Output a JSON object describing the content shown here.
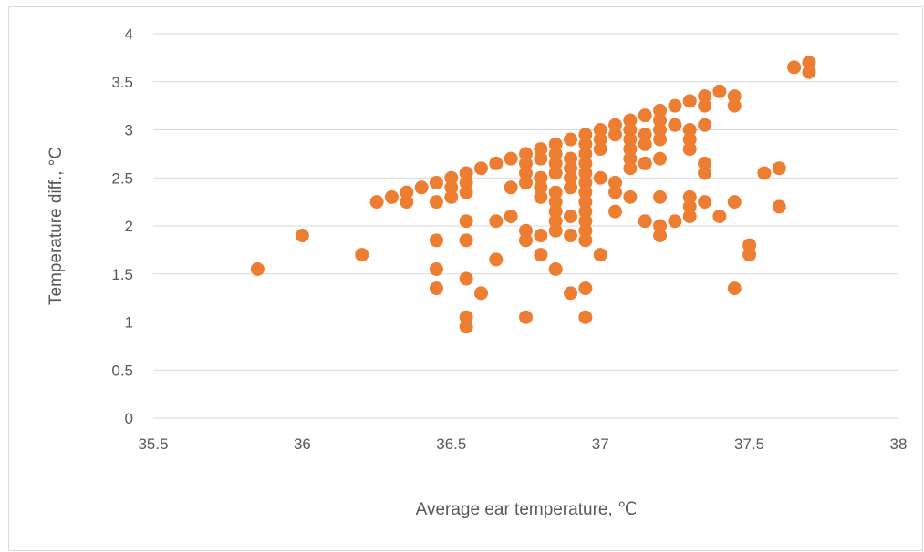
{
  "chart_data": {
    "type": "scatter",
    "title": "",
    "xlabel": "Average ear temperature, ℃",
    "ylabel": "Temperature diff., °C",
    "xlim": [
      35.5,
      38
    ],
    "ylim": [
      0,
      4
    ],
    "x_ticks": [
      "35.5",
      "36",
      "36.5",
      "37",
      "37.5",
      "38"
    ],
    "y_ticks": [
      "0",
      "0.5",
      "1",
      "1.5",
      "2",
      "2.5",
      "3",
      "3.5",
      "4"
    ],
    "grid": "horizontal",
    "legend": "none",
    "marker_color": "#ED7D31",
    "gridline_color": "#d9d9d9",
    "series": [
      {
        "points": [
          [
            35.85,
            1.55
          ],
          [
            36.0,
            1.9
          ],
          [
            36.2,
            1.7
          ],
          [
            36.25,
            2.25
          ],
          [
            36.3,
            2.3
          ],
          [
            36.35,
            2.35
          ],
          [
            36.35,
            2.25
          ],
          [
            36.4,
            2.4
          ],
          [
            36.45,
            2.45
          ],
          [
            36.45,
            2.25
          ],
          [
            36.45,
            1.85
          ],
          [
            36.45,
            1.55
          ],
          [
            36.45,
            1.35
          ],
          [
            36.5,
            2.5
          ],
          [
            36.5,
            2.4
          ],
          [
            36.5,
            2.3
          ],
          [
            36.55,
            2.55
          ],
          [
            36.55,
            2.45
          ],
          [
            36.55,
            2.35
          ],
          [
            36.55,
            2.05
          ],
          [
            36.55,
            1.85
          ],
          [
            36.55,
            1.45
          ],
          [
            36.55,
            1.05
          ],
          [
            36.55,
            0.95
          ],
          [
            36.6,
            2.6
          ],
          [
            36.6,
            1.3
          ],
          [
            36.65,
            2.65
          ],
          [
            36.65,
            2.05
          ],
          [
            36.65,
            1.65
          ],
          [
            36.7,
            2.7
          ],
          [
            36.7,
            2.4
          ],
          [
            36.7,
            2.1
          ],
          [
            36.75,
            2.75
          ],
          [
            36.75,
            2.65
          ],
          [
            36.75,
            2.55
          ],
          [
            36.75,
            2.45
          ],
          [
            36.75,
            1.95
          ],
          [
            36.75,
            1.85
          ],
          [
            36.75,
            1.05
          ],
          [
            36.8,
            2.8
          ],
          [
            36.8,
            2.7
          ],
          [
            36.8,
            2.5
          ],
          [
            36.8,
            2.4
          ],
          [
            36.8,
            2.3
          ],
          [
            36.8,
            1.9
          ],
          [
            36.8,
            1.7
          ],
          [
            36.85,
            2.85
          ],
          [
            36.85,
            2.75
          ],
          [
            36.85,
            2.65
          ],
          [
            36.85,
            2.55
          ],
          [
            36.85,
            2.35
          ],
          [
            36.85,
            2.25
          ],
          [
            36.85,
            2.15
          ],
          [
            36.85,
            2.05
          ],
          [
            36.85,
            1.95
          ],
          [
            36.85,
            1.55
          ],
          [
            36.9,
            2.9
          ],
          [
            36.9,
            2.7
          ],
          [
            36.9,
            2.6
          ],
          [
            36.9,
            2.5
          ],
          [
            36.9,
            2.4
          ],
          [
            36.9,
            2.1
          ],
          [
            36.9,
            1.9
          ],
          [
            36.9,
            1.3
          ],
          [
            36.95,
            2.95
          ],
          [
            36.95,
            2.85
          ],
          [
            36.95,
            2.75
          ],
          [
            36.95,
            2.65
          ],
          [
            36.95,
            2.55
          ],
          [
            36.95,
            2.45
          ],
          [
            36.95,
            2.35
          ],
          [
            36.95,
            2.25
          ],
          [
            36.95,
            2.15
          ],
          [
            36.95,
            2.05
          ],
          [
            36.95,
            1.95
          ],
          [
            36.95,
            1.85
          ],
          [
            36.95,
            1.35
          ],
          [
            36.95,
            1.05
          ],
          [
            37.0,
            3.0
          ],
          [
            37.0,
            2.9
          ],
          [
            37.0,
            2.8
          ],
          [
            37.0,
            2.5
          ],
          [
            37.0,
            1.7
          ],
          [
            37.05,
            3.05
          ],
          [
            37.05,
            2.95
          ],
          [
            37.05,
            2.45
          ],
          [
            37.05,
            2.35
          ],
          [
            37.05,
            2.15
          ],
          [
            37.1,
            3.1
          ],
          [
            37.1,
            3.0
          ],
          [
            37.1,
            2.9
          ],
          [
            37.1,
            2.8
          ],
          [
            37.1,
            2.7
          ],
          [
            37.1,
            2.6
          ],
          [
            37.1,
            2.3
          ],
          [
            37.15,
            3.15
          ],
          [
            37.15,
            2.95
          ],
          [
            37.15,
            2.85
          ],
          [
            37.15,
            2.65
          ],
          [
            37.15,
            2.05
          ],
          [
            37.2,
            3.2
          ],
          [
            37.2,
            3.1
          ],
          [
            37.2,
            3.0
          ],
          [
            37.2,
            2.9
          ],
          [
            37.2,
            2.7
          ],
          [
            37.2,
            2.3
          ],
          [
            37.2,
            2.0
          ],
          [
            37.2,
            1.9
          ],
          [
            37.25,
            3.25
          ],
          [
            37.25,
            3.05
          ],
          [
            37.25,
            2.05
          ],
          [
            37.3,
            3.3
          ],
          [
            37.3,
            3.0
          ],
          [
            37.3,
            2.9
          ],
          [
            37.3,
            2.8
          ],
          [
            37.3,
            2.3
          ],
          [
            37.3,
            2.2
          ],
          [
            37.3,
            2.1
          ],
          [
            37.35,
            3.35
          ],
          [
            37.35,
            3.25
          ],
          [
            37.35,
            3.05
          ],
          [
            37.35,
            2.65
          ],
          [
            37.35,
            2.55
          ],
          [
            37.35,
            2.25
          ],
          [
            37.4,
            3.4
          ],
          [
            37.4,
            2.1
          ],
          [
            37.45,
            3.35
          ],
          [
            37.45,
            3.25
          ],
          [
            37.45,
            2.25
          ],
          [
            37.45,
            1.35
          ],
          [
            37.5,
            1.8
          ],
          [
            37.5,
            1.7
          ],
          [
            37.55,
            2.55
          ],
          [
            37.6,
            2.6
          ],
          [
            37.6,
            2.2
          ],
          [
            37.65,
            3.65
          ],
          [
            37.7,
            3.7
          ],
          [
            37.7,
            3.6
          ]
        ]
      }
    ]
  }
}
